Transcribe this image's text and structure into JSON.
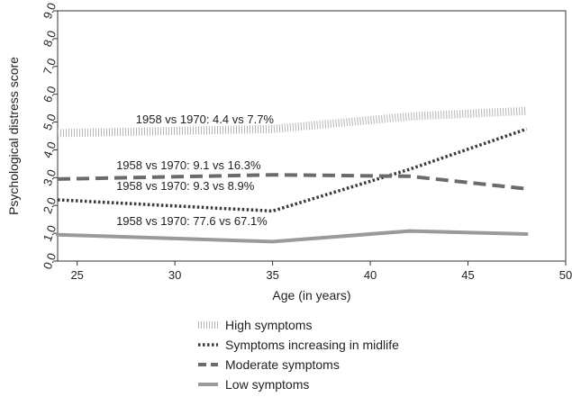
{
  "chart_data": {
    "type": "line",
    "xlabel": "Age (in years)",
    "ylabel": "Psychological distress score",
    "xlim": [
      24,
      50
    ],
    "ylim": [
      0,
      9
    ],
    "xticks": [
      25,
      30,
      35,
      40,
      45,
      50
    ],
    "yticks": [
      0,
      1,
      2,
      3,
      4,
      5,
      6,
      7,
      8,
      9
    ],
    "ytick_labels": [
      "0.0",
      "1.0",
      "2.0",
      "3.0",
      "4.0",
      "5.0",
      "6.0",
      "7.0",
      "8.0",
      "9.0"
    ],
    "grid": false,
    "legend_position": "bottom",
    "series": [
      {
        "name": "High symptoms",
        "x": [
          24,
          35,
          42,
          48
        ],
        "y": [
          4.6,
          4.75,
          5.2,
          5.4
        ],
        "color": "#b5b5b5",
        "style": "hatched",
        "annotation": "1958 vs 1970: 4.4 vs 7.7%"
      },
      {
        "name": "Symptoms increasing in midlife",
        "x": [
          24,
          35,
          42,
          48
        ],
        "y": [
          2.2,
          1.8,
          3.3,
          4.75
        ],
        "color": "#3a3a3a",
        "style": "dotted",
        "annotation": "1958 vs 1970: 9.3 vs 8.9%"
      },
      {
        "name": "Moderate symptoms",
        "x": [
          24,
          35,
          42,
          48
        ],
        "y": [
          2.95,
          3.1,
          3.05,
          2.6
        ],
        "color": "#6b6b6b",
        "style": "dashed",
        "annotation": "1958 vs 1970: 9.1 vs 16.3%"
      },
      {
        "name": "Low symptoms",
        "x": [
          24,
          35,
          42,
          48
        ],
        "y": [
          0.95,
          0.7,
          1.08,
          0.97
        ],
        "color": "#9a9a9a",
        "style": "solid",
        "annotation": "1958 vs 1970: 77.6 vs 67.1%"
      }
    ]
  }
}
